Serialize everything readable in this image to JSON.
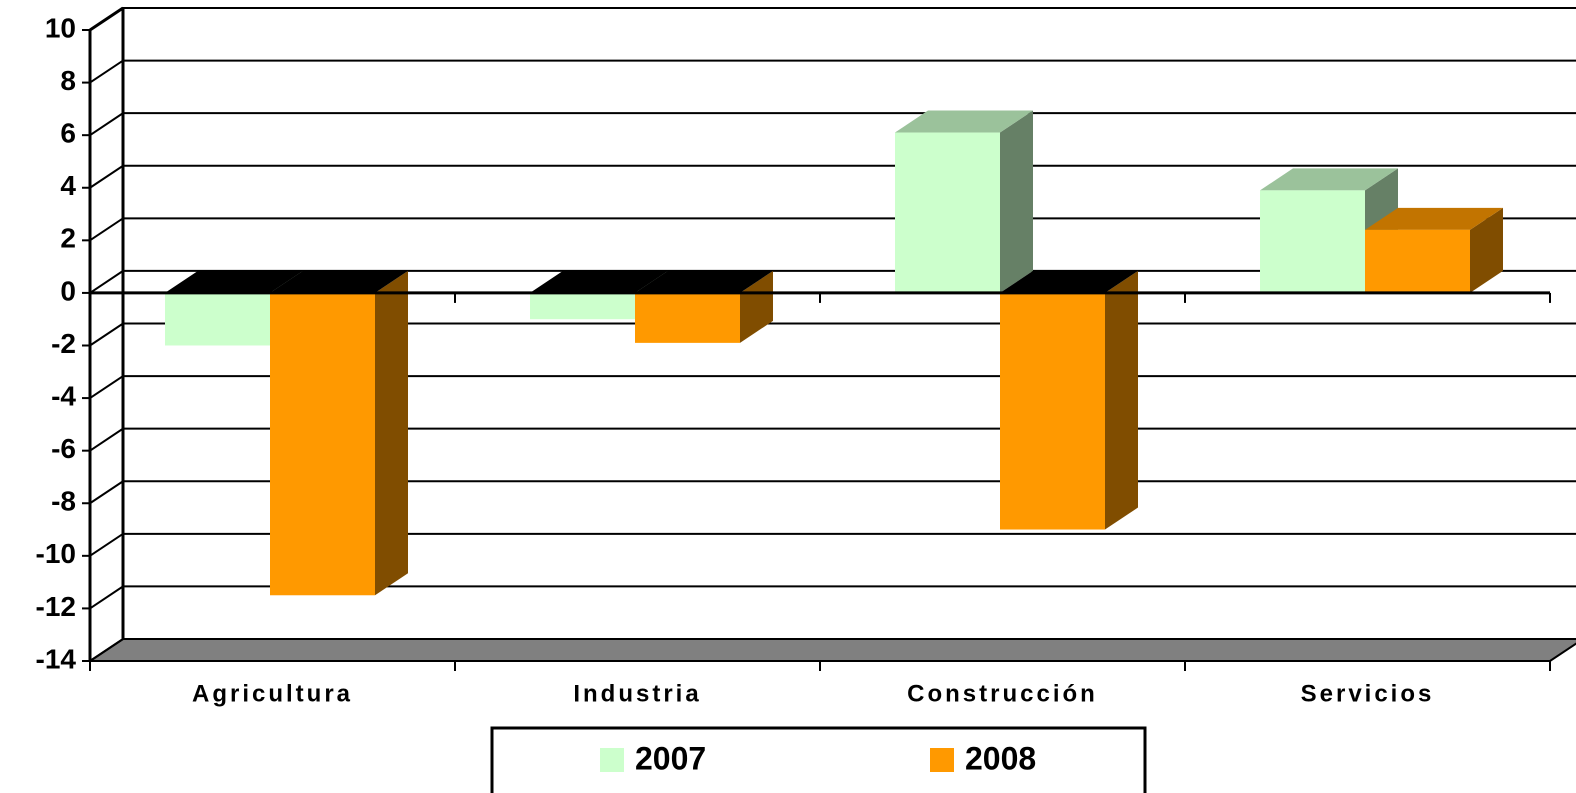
{
  "chart_data": {
    "type": "bar3d",
    "categories": [
      "Agricultura",
      "Industria",
      "Construcción",
      "Servicios"
    ],
    "series": [
      {
        "name": "2007",
        "color": "#ccffcc",
        "values": [
          -2.0,
          -1.0,
          6.1,
          3.9
        ]
      },
      {
        "name": "2008",
        "color": "#ff9900",
        "values": [
          -11.5,
          -1.9,
          -9.0,
          2.4
        ]
      }
    ],
    "ylim": [
      -14,
      10
    ],
    "yticks": [
      -14,
      -12,
      -10,
      -8,
      -6,
      -4,
      -2,
      0,
      2,
      4,
      6,
      8,
      10
    ],
    "grid": true,
    "legend": "bottom"
  }
}
